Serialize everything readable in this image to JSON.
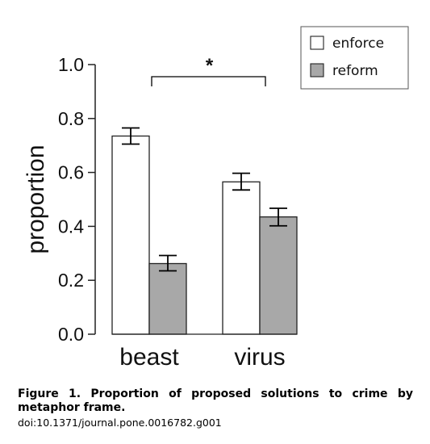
{
  "chart_data": {
    "type": "bar",
    "categories": [
      "beast",
      "virus"
    ],
    "series": [
      {
        "name": "enforce",
        "color": "#ffffff",
        "values": [
          0.735,
          0.565
        ],
        "error_low": [
          0.705,
          0.535
        ],
        "error_high": [
          0.765,
          0.597
        ]
      },
      {
        "name": "reform",
        "color": "#a8a8a8",
        "values": [
          0.262,
          0.435
        ],
        "error_low": [
          0.235,
          0.402
        ],
        "error_high": [
          0.292,
          0.467
        ]
      }
    ],
    "ylabel": "proportion",
    "ylim": [
      0,
      1.0
    ],
    "yticks": [
      "0.0",
      "0.2",
      "0.4",
      "0.6",
      "0.8",
      "1.0"
    ],
    "legend_position": "top-right",
    "significance": {
      "marker": "*",
      "between": [
        "beast",
        "virus"
      ],
      "y": 0.96
    },
    "grid": false
  },
  "caption": {
    "title": "Figure 1. Proportion of proposed solutions to crime by metaphor frame.",
    "doi": "doi:10.1371/journal.pone.0016782.g001"
  }
}
